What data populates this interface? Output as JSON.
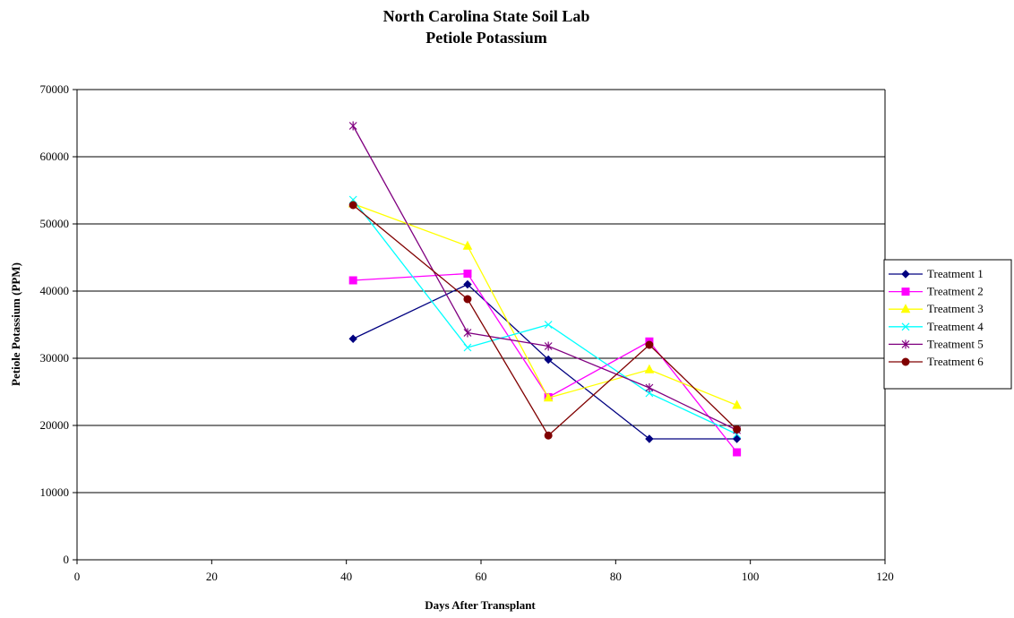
{
  "chart_data": {
    "type": "line",
    "title": [
      "North Carolina State Soil Lab",
      "Petiole Potassium"
    ],
    "xlabel": "Days After Transplant",
    "ylabel": "Petiole Potassium (PPM)",
    "xlim": [
      0,
      120
    ],
    "ylim": [
      0,
      70000
    ],
    "xticks": [
      0,
      20,
      40,
      60,
      80,
      100,
      120
    ],
    "yticks": [
      0,
      10000,
      20000,
      30000,
      40000,
      50000,
      60000,
      70000
    ],
    "grid": "horizontal",
    "legend_position": "right",
    "x": [
      41,
      58,
      70,
      85,
      98
    ],
    "series": [
      {
        "name": "Treatment 1",
        "values": [
          32900,
          41000,
          29800,
          18000,
          18000
        ],
        "color": "#000080",
        "marker": "diamond"
      },
      {
        "name": "Treatment 2",
        "values": [
          41600,
          42600,
          24200,
          32500,
          16000
        ],
        "color": "#FF00FF",
        "marker": "square"
      },
      {
        "name": "Treatment 3",
        "values": [
          53000,
          46700,
          24100,
          28300,
          23000
        ],
        "color": "#FFFF00",
        "marker": "triangle"
      },
      {
        "name": "Treatment 4",
        "values": [
          53600,
          31600,
          35000,
          24800,
          18700
        ],
        "color": "#00FFFF",
        "marker": "x"
      },
      {
        "name": "Treatment 5",
        "values": [
          64600,
          33800,
          31800,
          25600,
          19300
        ],
        "color": "#800080",
        "marker": "asterisk"
      },
      {
        "name": "Treatment 6",
        "values": [
          52800,
          38800,
          18500,
          32000,
          19400
        ],
        "color": "#800000",
        "marker": "circle"
      }
    ]
  }
}
